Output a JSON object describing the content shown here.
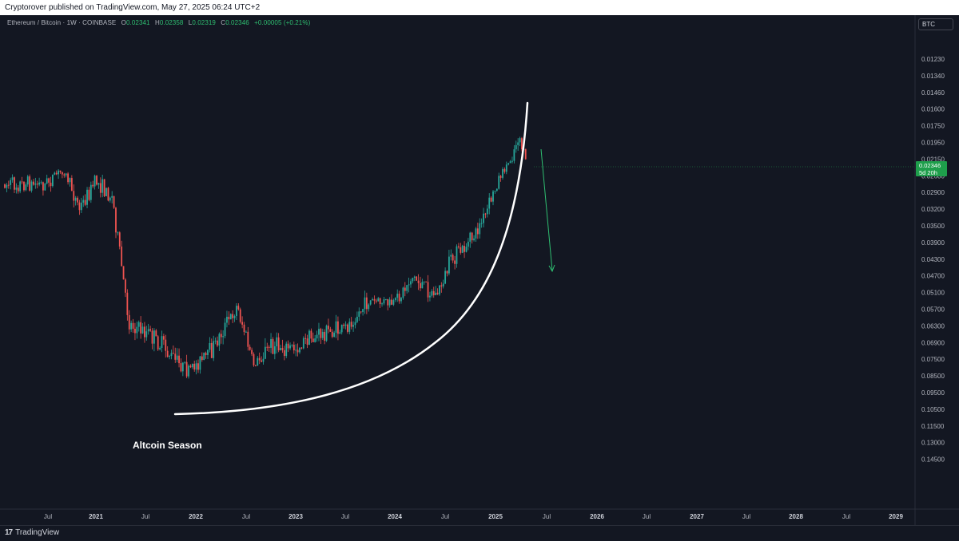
{
  "publish_bar": {
    "text": "Cryptorover published on TradingView.com, May 27, 2025 06:24 UTC+2"
  },
  "legend": {
    "symbol": "Ethereum / Bitcoin · 1W · COINBASE",
    "open_label": "O",
    "open_value": "0.02341",
    "high_label": "H",
    "high_value": "0.02358",
    "low_label": "L",
    "low_value": "0.02319",
    "close_label": "C",
    "close_value": "0.02346",
    "change": "+0.00005 (+0.21%)"
  },
  "currency_badge": "BTC",
  "price_tag": {
    "price": "0.02346",
    "countdown": "5d 20h"
  },
  "annotation": "Altcoin Season",
  "footer": {
    "logo_text": "TradingView",
    "logo_mark": "17"
  },
  "colors": {
    "background": "#131722",
    "up_candle": "#26a69a",
    "down_candle": "#ef5350",
    "curve": "#ffffff",
    "arrow": "#2fbf71"
  },
  "chart_data": {
    "type": "candlestick",
    "title": "Ethereum / Bitcoin · 1W · COINBASE",
    "y_axis": {
      "scale": "inverted",
      "ticks": [
        "0.01230",
        "0.01340",
        "0.01460",
        "0.01600",
        "0.01750",
        "0.01950",
        "0.02150",
        "0.02600",
        "0.02900",
        "0.03200",
        "0.03500",
        "0.03900",
        "0.04300",
        "0.04700",
        "0.05100",
        "0.05700",
        "0.06300",
        "0.06900",
        "0.07500",
        "0.08500",
        "0.09500",
        "0.10500",
        "0.11500",
        "0.13000",
        "0.14500"
      ]
    },
    "x_axis": {
      "ticks": [
        "Jul",
        "2021",
        "Jul",
        "2022",
        "Jul",
        "2023",
        "Jul",
        "2024",
        "Jul",
        "2025",
        "Jul",
        "2026",
        "Jul",
        "2027",
        "Jul",
        "2028",
        "Jul",
        "2029"
      ],
      "bold_ticks": [
        "2021",
        "2022",
        "2023",
        "2024",
        "2025",
        "2026",
        "2027",
        "2028",
        "2029"
      ]
    },
    "series_path": [
      [
        "2020-07",
        0.0275
      ],
      [
        "2020-09",
        0.0245
      ],
      [
        "2020-11",
        0.032
      ],
      [
        "2021-01",
        0.027
      ],
      [
        "2021-03",
        0.03
      ],
      [
        "2021-05",
        0.062
      ],
      [
        "2021-07",
        0.065
      ],
      [
        "2021-09",
        0.07
      ],
      [
        "2021-12",
        0.082
      ],
      [
        "2022-03",
        0.072
      ],
      [
        "2022-06",
        0.056
      ],
      [
        "2022-08",
        0.078
      ],
      [
        "2022-10",
        0.07
      ],
      [
        "2023-01",
        0.071
      ],
      [
        "2023-04",
        0.066
      ],
      [
        "2023-07",
        0.064
      ],
      [
        "2023-10",
        0.054
      ],
      [
        "2024-01",
        0.055
      ],
      [
        "2024-03",
        0.047
      ],
      [
        "2024-06",
        0.052
      ],
      [
        "2024-08",
        0.043
      ],
      [
        "2024-10",
        0.039
      ],
      [
        "2024-12",
        0.033
      ],
      [
        "2025-02",
        0.025
      ],
      [
        "2025-04",
        0.0185
      ],
      [
        "2025-05",
        0.0234
      ]
    ],
    "last_close": 0.02346
  }
}
